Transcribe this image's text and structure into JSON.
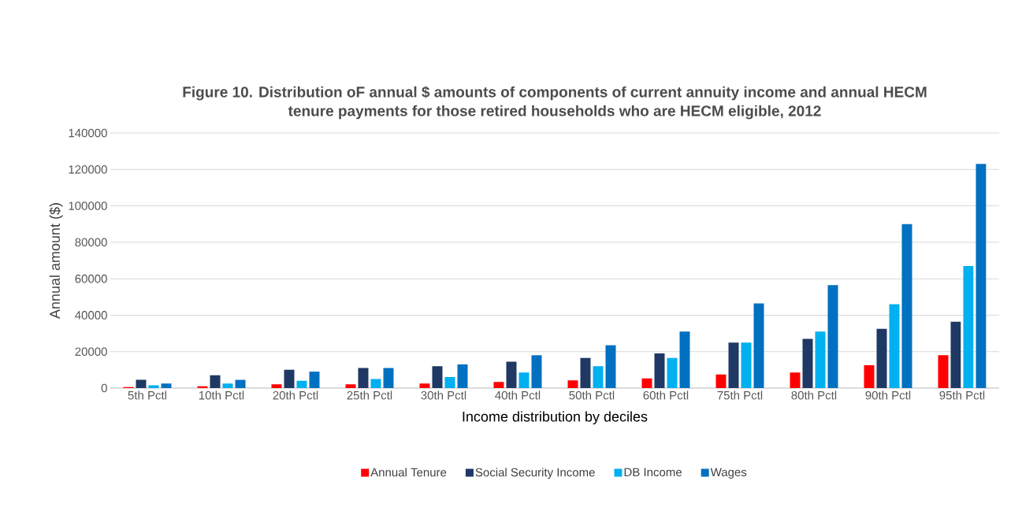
{
  "chart_data": {
    "type": "bar",
    "title": "Figure 10. Distribution oF annual $ amounts of components of current annuity income and annual HECM tenure payments for those retired households who are HECM eligible, 2012",
    "xlabel": "Income distribution by deciles",
    "ylabel": "Annual amount ($)",
    "categories": [
      "5th Pctl",
      "10th Pctl",
      "20th Pctl",
      "25th Pctl",
      "30th Pctl",
      "40th Pctl",
      "50th Pctl",
      "60th Pctl",
      "75th Pctl",
      "80th Pctl",
      "90th Pctl",
      "95th Pctl"
    ],
    "series": [
      {
        "name": "Annual Tenure",
        "color": "#ff0000",
        "values": [
          500,
          1000,
          2000,
          2000,
          2500,
          3300,
          4200,
          5300,
          7500,
          8500,
          12500,
          18000
        ]
      },
      {
        "name": "Social Security Income",
        "color": "#1f3864",
        "values": [
          4500,
          7000,
          10000,
          11000,
          12000,
          14500,
          16500,
          19000,
          25000,
          27000,
          32500,
          36500
        ]
      },
      {
        "name": "DB Income",
        "color": "#00b0f0",
        "values": [
          1500,
          2500,
          4000,
          5000,
          6000,
          8500,
          12000,
          16500,
          25000,
          31000,
          46000,
          67000
        ]
      },
      {
        "name": "Wages",
        "color": "#0070c0",
        "values": [
          2500,
          4500,
          9000,
          11000,
          13000,
          18000,
          23500,
          31000,
          46500,
          56500,
          90000,
          123000
        ]
      }
    ],
    "ylim": [
      0,
      140000
    ],
    "yticks": [
      0,
      20000,
      40000,
      60000,
      80000,
      100000,
      120000,
      140000
    ],
    "grid": "y",
    "legend": "bottom"
  }
}
